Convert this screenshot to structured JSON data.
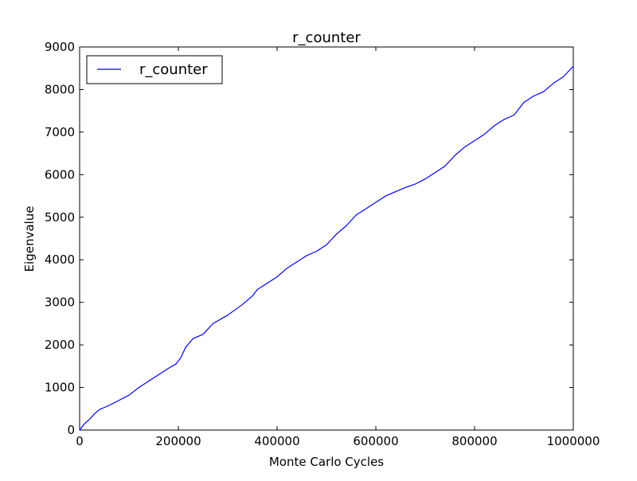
{
  "chart_data": {
    "type": "line",
    "title": "r_counter",
    "xlabel": "Monte Carlo Cycles",
    "ylabel": "Eigenvalue",
    "xlim": [
      0,
      1000000
    ],
    "ylim": [
      0,
      9000
    ],
    "xticks": [
      0,
      200000,
      400000,
      600000,
      800000,
      1000000
    ],
    "xtick_labels": [
      "0",
      "200000",
      "400000",
      "600000",
      "800000",
      "1000000"
    ],
    "yticks": [
      0,
      1000,
      2000,
      3000,
      4000,
      5000,
      6000,
      7000,
      8000,
      9000
    ],
    "ytick_labels": [
      "0",
      "1000",
      "2000",
      "3000",
      "4000",
      "5000",
      "6000",
      "7000",
      "8000",
      "9000"
    ],
    "grid": false,
    "legend": {
      "position": "top-left",
      "entries": [
        "r_counter"
      ]
    },
    "series": [
      {
        "name": "r_counter",
        "color": "#0000ff",
        "x": [
          0,
          10000,
          20000,
          30000,
          40000,
          60000,
          80000,
          100000,
          120000,
          140000,
          160000,
          180000,
          195000,
          205000,
          215000,
          230000,
          250000,
          270000,
          300000,
          330000,
          350000,
          360000,
          380000,
          400000,
          420000,
          440000,
          460000,
          480000,
          500000,
          520000,
          540000,
          560000,
          580000,
          600000,
          620000,
          640000,
          660000,
          680000,
          700000,
          720000,
          740000,
          760000,
          780000,
          800000,
          820000,
          840000,
          860000,
          880000,
          900000,
          920000,
          940000,
          960000,
          980000,
          1000000
        ],
        "y": [
          0,
          150,
          250,
          380,
          480,
          580,
          700,
          820,
          1000,
          1150,
          1300,
          1450,
          1550,
          1700,
          1950,
          2150,
          2250,
          2500,
          2700,
          2950,
          3150,
          3300,
          3450,
          3600,
          3800,
          3950,
          4100,
          4200,
          4350,
          4600,
          4800,
          5050,
          5200,
          5350,
          5500,
          5600,
          5700,
          5780,
          5900,
          6050,
          6200,
          6450,
          6650,
          6800,
          6950,
          7150,
          7300,
          7400,
          7700,
          7850,
          7950,
          8150,
          8300,
          8550
        ]
      }
    ]
  }
}
